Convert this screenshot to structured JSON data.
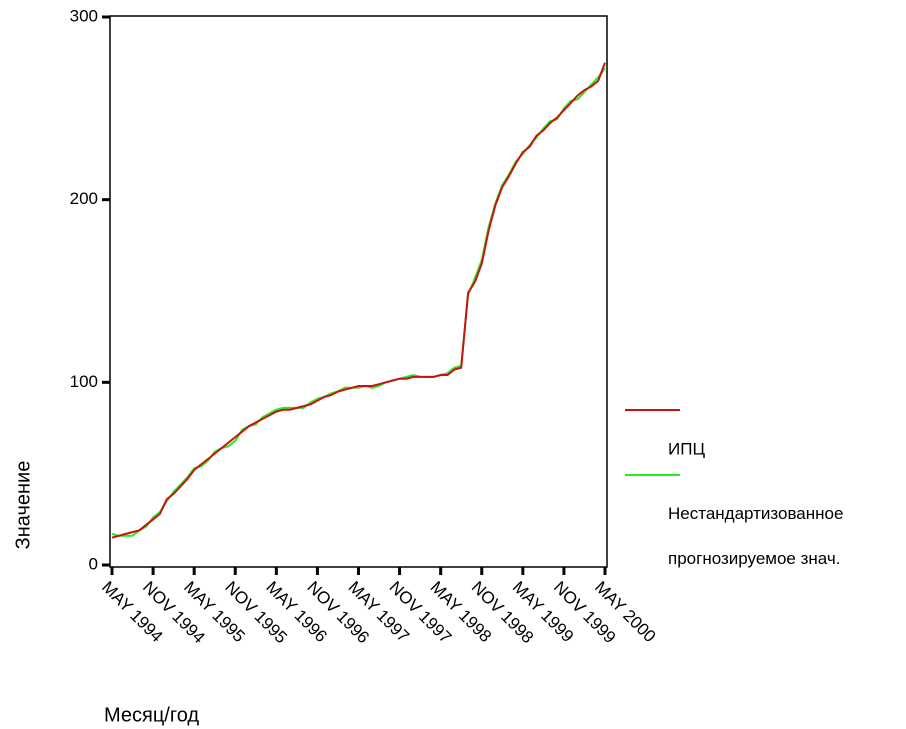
{
  "chart_data": {
    "type": "line",
    "y_label": "Значение",
    "x_label": "Месяц/год",
    "categories": [
      "MAY 1994",
      null,
      null,
      null,
      null,
      null,
      "NOV 1994",
      null,
      null,
      null,
      null,
      null,
      "MAY 1995",
      null,
      null,
      null,
      null,
      null,
      "NOV 1995",
      null,
      null,
      null,
      null,
      null,
      "MAY 1996",
      null,
      null,
      null,
      null,
      null,
      "NOV 1996",
      null,
      null,
      null,
      null,
      null,
      "MAY 1997",
      null,
      null,
      null,
      null,
      null,
      "NOV 1997",
      null,
      null,
      null,
      null,
      null,
      "MAY 1998",
      null,
      null,
      null,
      null,
      null,
      "NOV 1998",
      null,
      null,
      null,
      null,
      null,
      "MAY 1999",
      null,
      null,
      null,
      null,
      null,
      "NOV 1999",
      null,
      null,
      null,
      null,
      null,
      "MAY 2000"
    ],
    "series": [
      {
        "name": "ИПЦ",
        "color": "#cc1010",
        "values": [
          15,
          16,
          17,
          18,
          19,
          22,
          25,
          28,
          36,
          39,
          43,
          47,
          52,
          55,
          58,
          61,
          64,
          67,
          70,
          73,
          76,
          78,
          80,
          82,
          84,
          85,
          85,
          86,
          87,
          88,
          90,
          92,
          93,
          95,
          96,
          97,
          98,
          98,
          98,
          99,
          100,
          101,
          102,
          102,
          103,
          103,
          103,
          103,
          104,
          104,
          107,
          108,
          149,
          155,
          165,
          183,
          197,
          207,
          213,
          220,
          226,
          229,
          235,
          238,
          242,
          245,
          249,
          253,
          257,
          260,
          262,
          265,
          275
        ]
      },
      {
        "name": "Нестандартизованное прогнозируемое знач.",
        "color": "#22ee22",
        "values": [
          17,
          16,
          16,
          16,
          19,
          21,
          26,
          29,
          35,
          40,
          44,
          48,
          53,
          54,
          57,
          62,
          64,
          65,
          68,
          74,
          76,
          77,
          81,
          83,
          85,
          86,
          86,
          86,
          86,
          89,
          91,
          92,
          94,
          95,
          97,
          97,
          97,
          98,
          97,
          98,
          100,
          101,
          102,
          103,
          104,
          103,
          103,
          103,
          104,
          105,
          108,
          109,
          148,
          157,
          167,
          185,
          198,
          208,
          214,
          221,
          225,
          230,
          234,
          239,
          243,
          244,
          250,
          254,
          255,
          259,
          263,
          267,
          272
        ]
      }
    ],
    "ylim": [
      0,
      300
    ],
    "yticks": [
      0,
      100,
      200,
      300
    ],
    "grid": false
  }
}
